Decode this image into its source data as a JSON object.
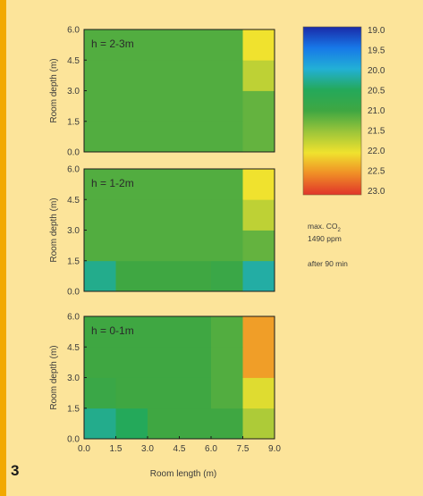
{
  "figure_number": "3",
  "colors": {
    "background": "#fce49a",
    "accent_stripe": "#f2a900"
  },
  "chart_data": {
    "type": "heatmap",
    "xlabel": "Room length (m)",
    "ylabel": "Room depth (m)",
    "xlim": [
      0.0,
      9.0
    ],
    "ylim": [
      0.0,
      6.0
    ],
    "x_ticks": [
      "0.0",
      "1.5",
      "3.0",
      "4.5",
      "6.0",
      "7.5",
      "9.0"
    ],
    "y_ticks": [
      "0.0",
      "1.5",
      "3.0",
      "4.5",
      "6.0"
    ],
    "x_edges": [
      0,
      1.5,
      3,
      4.5,
      6,
      7.5,
      9
    ],
    "y_edges": [
      0,
      1.5,
      3,
      4.5,
      6
    ],
    "panels": [
      {
        "title": "h = 2-3m",
        "cells": [
          [
            21.1,
            21.1,
            21.1,
            21.1,
            21.1,
            21.2
          ],
          [
            21.1,
            21.1,
            21.1,
            21.1,
            21.1,
            21.2
          ],
          [
            21.1,
            21.1,
            21.1,
            21.1,
            21.1,
            21.7
          ],
          [
            21.1,
            21.1,
            21.1,
            21.1,
            21.1,
            22.0
          ]
        ]
      },
      {
        "title": "h = 1-2m",
        "cells": [
          [
            20.3,
            21.0,
            21.0,
            21.0,
            20.9,
            20.2
          ],
          [
            21.1,
            21.1,
            21.1,
            21.1,
            21.1,
            21.2
          ],
          [
            21.1,
            21.1,
            21.1,
            21.1,
            21.1,
            21.7
          ],
          [
            21.1,
            21.1,
            21.1,
            21.1,
            21.1,
            22.0
          ]
        ]
      },
      {
        "title": "h = 0-1m",
        "cells": [
          [
            20.3,
            20.5,
            21.0,
            21.0,
            21.0,
            21.6
          ],
          [
            20.9,
            21.0,
            21.0,
            21.0,
            21.1,
            21.9
          ],
          [
            21.0,
            21.0,
            21.0,
            21.0,
            21.1,
            22.4
          ],
          [
            21.0,
            21.0,
            21.0,
            21.0,
            21.1,
            22.4
          ]
        ]
      }
    ],
    "colorbar": {
      "min": 19.0,
      "max": 23.0,
      "labels": [
        "19.0",
        "19.5",
        "20.0",
        "20.5",
        "21.0",
        "21.5",
        "22.0",
        "22.5",
        "23.0"
      ],
      "stops": [
        "#1a2aa8",
        "#1778e8",
        "#22b0d6",
        "#24a95a",
        "#3fa742",
        "#9cc53a",
        "#f0e22e",
        "#f08d26",
        "#e0342a"
      ]
    },
    "notes": {
      "max_label": "max. CO",
      "max_sub": "2",
      "max_value": "1490 ppm",
      "time": "after 90 min"
    }
  }
}
